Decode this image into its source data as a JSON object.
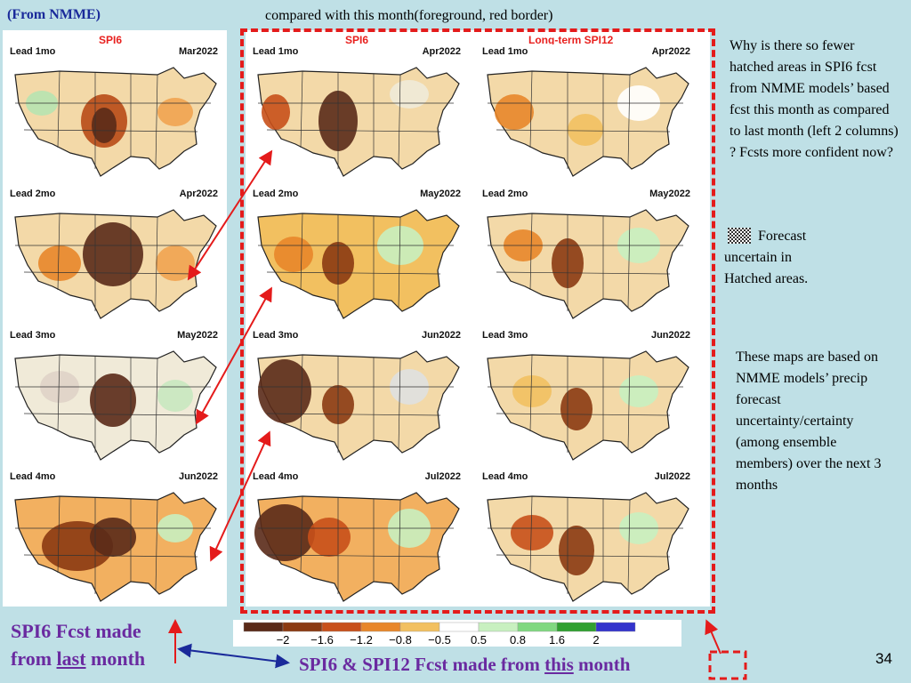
{
  "header": {
    "left": "(From NMME)",
    "middle": "compared with this month(foreground, red border)"
  },
  "left_column": {
    "title": "SPI6",
    "maps": [
      {
        "lead": "Lead 1mo",
        "date": "Mar2022"
      },
      {
        "lead": "Lead 2mo",
        "date": "Apr2022"
      },
      {
        "lead": "Lead 3mo",
        "date": "May2022"
      },
      {
        "lead": "Lead 4mo",
        "date": "Jun2022"
      }
    ]
  },
  "mid_column": {
    "title": "SPI6",
    "maps": [
      {
        "lead": "Lead 1mo",
        "date": "Apr2022"
      },
      {
        "lead": "Lead 2mo",
        "date": "May2022"
      },
      {
        "lead": "Lead 3mo",
        "date": "Jun2022"
      },
      {
        "lead": "Lead 4mo",
        "date": "Jul2022"
      }
    ]
  },
  "right_column": {
    "title": "Long-term SPI12",
    "maps": [
      {
        "lead": "Lead 1mo",
        "date": "Apr2022"
      },
      {
        "lead": "Lead 2mo",
        "date": "May2022"
      },
      {
        "lead": "Lead 3mo",
        "date": "Jun2022"
      },
      {
        "lead": "Lead 4mo",
        "date": "Jul2022"
      }
    ]
  },
  "side": {
    "question": "Why is there so fewer hatched areas in SPI6 fcst from NMME models’ based fcst this month as compared to last month (left 2 columns) ? Fcsts more confident now?",
    "hatch_line1": "Forecast",
    "hatch_line2": "uncertain in",
    "hatch_line3": "Hatched areas.",
    "note": "These maps are based on NMME models’ precip forecast uncertainty/certainty (among ensemble members) over the next 3 months"
  },
  "legend": {
    "labels": [
      "−2",
      "−1.6",
      "−1.2",
      "−0.8",
      "−0.5",
      "0.5",
      "0.8",
      "1.6",
      "2"
    ],
    "colors": [
      "#5a2a18",
      "#8b3a12",
      "#c8501a",
      "#e8862a",
      "#f2c060",
      "#ffffff",
      "#c8f0c0",
      "#80d880",
      "#30a030",
      "#3333cc"
    ]
  },
  "bottom": {
    "left_line1": "SPI6 Fcst made",
    "left_line2_pre": "from ",
    "left_line2_u": "last",
    "left_line2_post": " month",
    "mid_pre": "SPI6  & SPI12 Fcst made from ",
    "mid_u": "this",
    "mid_post": " month",
    "page": "34"
  },
  "colors": {
    "accent_red": "#e41b1b",
    "title_blue": "#1a2a9a",
    "bottom_purple": "#6a2aa0",
    "background": "#bfe0e6"
  }
}
